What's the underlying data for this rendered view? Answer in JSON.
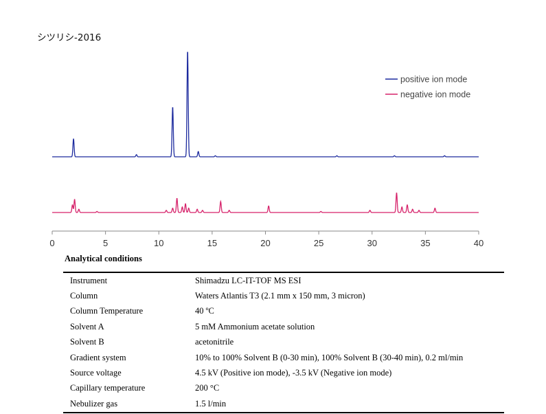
{
  "title": "シツリシ-2016",
  "chart_data": {
    "type": "line",
    "xlim": [
      0,
      40
    ],
    "x_ticks": [
      0,
      5,
      10,
      15,
      20,
      25,
      30,
      35,
      40
    ],
    "xlabel": "",
    "ylabel": "",
    "legend_position": "top-right",
    "series": [
      {
        "name": "positive ion mode",
        "color": "#1c2a9e",
        "baseline": 0,
        "peaks": [
          {
            "x": 2.0,
            "h": 0.17
          },
          {
            "x": 7.9,
            "h": 0.02
          },
          {
            "x": 11.3,
            "h": 0.47
          },
          {
            "x": 12.7,
            "h": 1.0
          },
          {
            "x": 13.7,
            "h": 0.05
          },
          {
            "x": 15.3,
            "h": 0.01
          },
          {
            "x": 26.7,
            "h": 0.01
          },
          {
            "x": 32.1,
            "h": 0.01
          },
          {
            "x": 36.8,
            "h": 0.01
          }
        ]
      },
      {
        "name": "negative ion mode",
        "color": "#d6226a",
        "baseline": 0,
        "peaks": [
          {
            "x": 1.9,
            "h": 0.07
          },
          {
            "x": 2.1,
            "h": 0.12
          },
          {
            "x": 2.5,
            "h": 0.03
          },
          {
            "x": 4.2,
            "h": 0.01
          },
          {
            "x": 10.7,
            "h": 0.02
          },
          {
            "x": 11.3,
            "h": 0.04
          },
          {
            "x": 11.7,
            "h": 0.13
          },
          {
            "x": 12.2,
            "h": 0.05
          },
          {
            "x": 12.5,
            "h": 0.08
          },
          {
            "x": 12.8,
            "h": 0.04
          },
          {
            "x": 13.6,
            "h": 0.03
          },
          {
            "x": 14.1,
            "h": 0.02
          },
          {
            "x": 15.8,
            "h": 0.1
          },
          {
            "x": 16.6,
            "h": 0.02
          },
          {
            "x": 20.3,
            "h": 0.06
          },
          {
            "x": 25.2,
            "h": 0.01
          },
          {
            "x": 29.8,
            "h": 0.02
          },
          {
            "x": 32.3,
            "h": 0.18
          },
          {
            "x": 32.8,
            "h": 0.05
          },
          {
            "x": 33.3,
            "h": 0.07
          },
          {
            "x": 33.8,
            "h": 0.03
          },
          {
            "x": 34.4,
            "h": 0.02
          },
          {
            "x": 35.9,
            "h": 0.04
          }
        ]
      }
    ]
  },
  "conditions": {
    "heading": "Analytical conditions",
    "rows": [
      {
        "label": "Instrument",
        "value": "Shimadzu LC-IT-TOF MS ESI"
      },
      {
        "label": "Column",
        "value": "Waters Atlantis T3 (2.1 mm x 150 mm, 3 micron)"
      },
      {
        "label": "Column Temperature",
        "value": "40 ºC"
      },
      {
        "label": "Solvent A",
        "value": "5 mM Ammonium acetate solution"
      },
      {
        "label": "Solvent B",
        "value": "acetonitrile"
      },
      {
        "label": "Gradient system",
        "value": "10% to 100% Solvent B (0-30 min), 100% Solvent B (30-40 min), 0.2 ml/min"
      },
      {
        "label": "Source voltage",
        "value": "4.5 kV (Positive ion mode), -3.5 kV (Negative ion mode)"
      },
      {
        "label": "Capillary temperature",
        "value": "200 °C"
      },
      {
        "label": "Nebulizer gas",
        "value": "1.5 l/min"
      }
    ]
  }
}
